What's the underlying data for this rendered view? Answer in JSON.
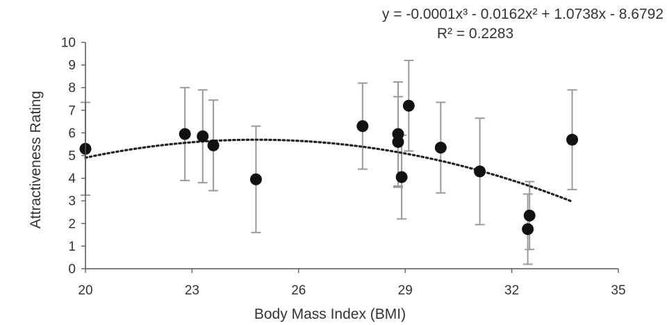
{
  "chart_data": {
    "type": "scatter",
    "xlabel": "Body Mass Index (BMI)",
    "ylabel": "Attractiveness Rating",
    "xlim": [
      20,
      35
    ],
    "ylim": [
      0,
      10
    ],
    "xticks": [
      20,
      23,
      26,
      29,
      32,
      35
    ],
    "yticks": [
      0,
      1,
      2,
      3,
      4,
      5,
      6,
      7,
      8,
      9,
      10
    ],
    "grid": false,
    "points": [
      {
        "x": 20.0,
        "y": 5.3,
        "err": 2.05
      },
      {
        "x": 22.8,
        "y": 5.95,
        "err": 2.05
      },
      {
        "x": 23.3,
        "y": 5.85,
        "err": 2.05
      },
      {
        "x": 23.6,
        "y": 5.45,
        "err": 2.0
      },
      {
        "x": 24.8,
        "y": 3.95,
        "err": 2.35
      },
      {
        "x": 27.8,
        "y": 6.3,
        "err": 1.9
      },
      {
        "x": 28.8,
        "y": 5.95,
        "err": 2.3
      },
      {
        "x": 28.8,
        "y": 5.6,
        "err": 2.0
      },
      {
        "x": 28.9,
        "y": 4.05,
        "err": 1.85
      },
      {
        "x": 29.1,
        "y": 7.2,
        "err": 2.0
      },
      {
        "x": 30.0,
        "y": 5.35,
        "err": 2.0
      },
      {
        "x": 31.1,
        "y": 4.3,
        "err": 2.35
      },
      {
        "x": 32.45,
        "y": 1.75,
        "err": 1.55
      },
      {
        "x": 32.5,
        "y": 2.35,
        "err": 1.5
      },
      {
        "x": 33.7,
        "y": 5.7,
        "err": 2.2
      }
    ],
    "trendline": {
      "type": "polynomial",
      "order": 3,
      "equation": "y = -0.0001x³ - 0.0162x² + 1.0738x - 8.6792",
      "r_squared": "R² = 0.2283",
      "coefficients": [
        -0.0001,
        -0.0162,
        1.0738,
        -8.6792
      ],
      "x_range": [
        20,
        33.7
      ]
    },
    "colors": {
      "marker": "#111111",
      "error_bar": "#9a9a9a",
      "trendline": "#222222",
      "axis": "#555555"
    }
  }
}
